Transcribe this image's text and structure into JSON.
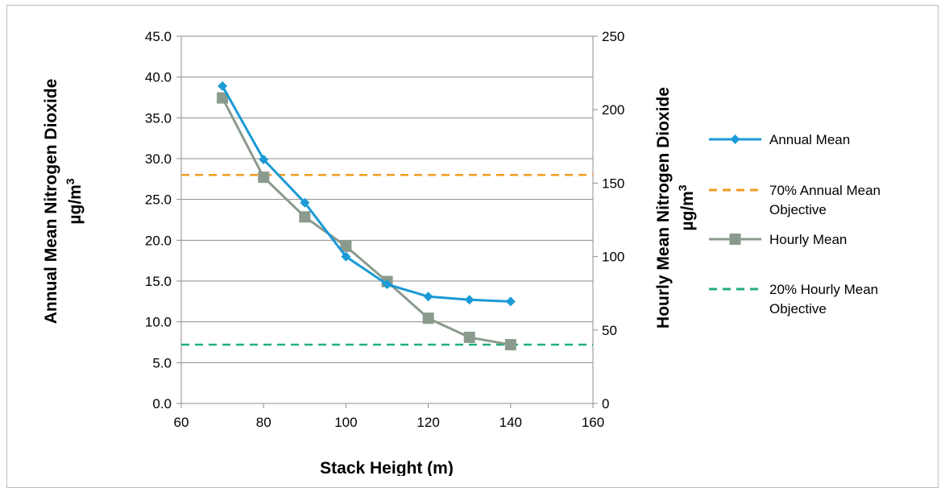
{
  "chart_data": {
    "type": "line",
    "xlabel": "Stack Height (m)",
    "ylabel_left": {
      "main": "Annual Mean Nitrogen Dioxide",
      "unit": "µg/m",
      "sup": "3"
    },
    "ylabel_right": {
      "main": "Hourly Mean Nitrogen Dioxide",
      "unit": "µg/m",
      "sup": "3"
    },
    "xlim": [
      60,
      160
    ],
    "x_ticks": [
      "60",
      "80",
      "100",
      "120",
      "140",
      "160"
    ],
    "ylim_left": [
      0,
      45
    ],
    "y_left_ticks": [
      "0.0",
      "5.0",
      "10.0",
      "15.0",
      "20.0",
      "25.0",
      "30.0",
      "35.0",
      "40.0",
      "45.0"
    ],
    "ylim_right": [
      0,
      250
    ],
    "y_right_ticks": [
      "0",
      "50",
      "100",
      "150",
      "200",
      "250"
    ],
    "grid": "horizontal",
    "legend_position": "right",
    "series": [
      {
        "name": "Annual Mean",
        "axis": "left",
        "marker": "diamond",
        "color": "#1a9ad6",
        "line": "solid",
        "x": [
          70,
          80,
          90,
          100,
          110,
          120,
          130,
          140
        ],
        "y": [
          38.9,
          29.9,
          24.6,
          18.0,
          14.6,
          13.1,
          12.7,
          12.5
        ]
      },
      {
        "name": "70% Annual Mean Objective",
        "axis": "left",
        "marker": "none",
        "color": "#f39c1f",
        "line": "dashed",
        "x": [
          60,
          160
        ],
        "y": [
          28.0,
          28.0
        ]
      },
      {
        "name": "Hourly Mean",
        "axis": "right",
        "marker": "square",
        "color": "#8a9a8c",
        "line": "solid",
        "x": [
          70,
          80,
          90,
          100,
          110,
          120,
          130,
          140
        ],
        "y": [
          208,
          154,
          127,
          107,
          83,
          58,
          45,
          40
        ]
      },
      {
        "name": "20% Hourly Mean Objective",
        "axis": "right",
        "marker": "none",
        "color": "#20b07a",
        "line": "dashed",
        "x": [
          60,
          160
        ],
        "y": [
          40,
          40
        ]
      }
    ],
    "legend": [
      {
        "lines": [
          "Annual Mean"
        ]
      },
      {
        "lines": [
          "70% Annual Mean",
          "Objective"
        ]
      },
      {
        "lines": [
          "Hourly Mean"
        ]
      },
      {
        "lines": [
          "20% Hourly Mean",
          "Objective"
        ]
      }
    ]
  }
}
